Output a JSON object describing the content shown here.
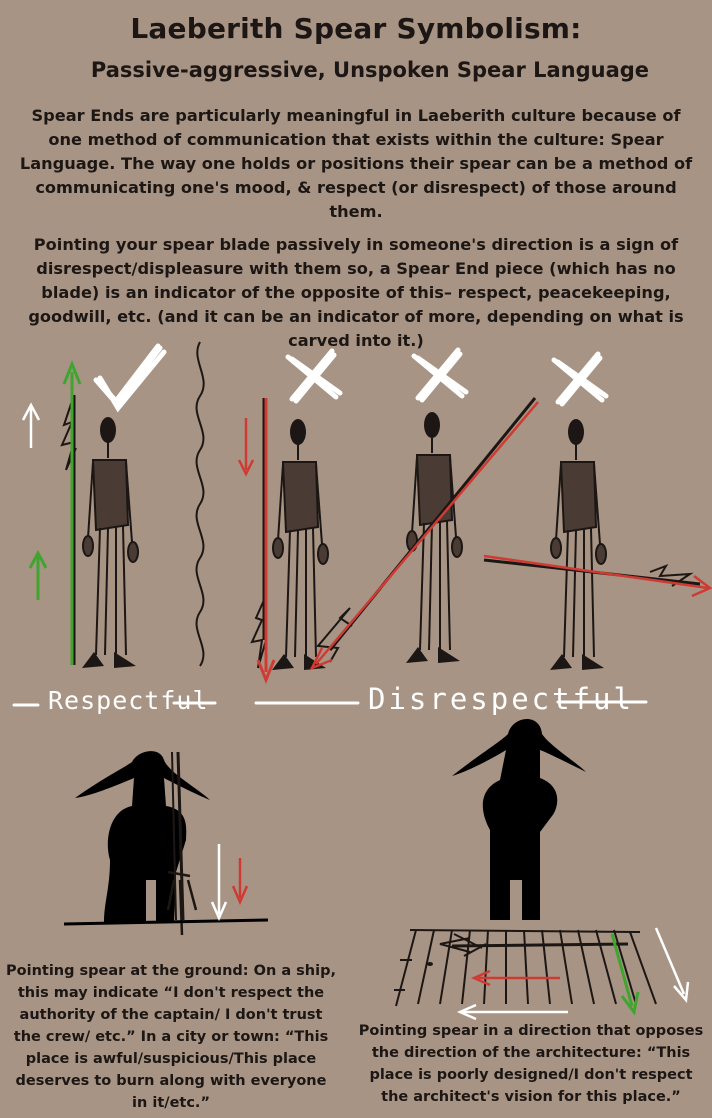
{
  "header": {
    "title": "Laeberith Spear Symbolism:",
    "subtitle": "Passive-aggressive, Unspoken Spear Language"
  },
  "intro": {
    "paragraph_1": "Spear Ends are particularly meaningful in Laeberith culture because of one method of communication that exists within the culture: Spear Language. The way one holds or positions their spear can be a method of communicating one's mood, & respect (or disrespect) of those around them.",
    "paragraph_2": "Pointing your spear blade passively in someone's direction is a sign of disrespect/displeasure with them so, a Spear End piece (which has no blade) is an indicator of the opposite of this– respect, peacekeeping, goodwill, etc. (and it can be an indicator of more, depending on what is carved into it.)"
  },
  "diagram": {
    "label_respectful": "Respectful",
    "label_disrespectful": "Disrespectful",
    "marks": [
      "check-icon",
      "cross-icon",
      "cross-icon",
      "cross-icon"
    ],
    "colors": {
      "arrow_up": "#3fa52e",
      "arrow_down": "#cf3b33",
      "spear_ink": "#1c1714",
      "torso": "#4a3c34",
      "chalk": "#ffffff"
    }
  },
  "captions": {
    "ground": "Pointing spear at the ground: On a ship, this may indicate “I don't respect the authority of the captain/ I don't trust the crew/ etc.” In a city or town: “This place is awful/suspicious/This place deserves to burn along with everyone in it/etc.”",
    "architecture": "Pointing spear in a direction that opposes the direction of the architecture: “This place is poorly designed/I don't respect the architect's vision for this place.”"
  }
}
